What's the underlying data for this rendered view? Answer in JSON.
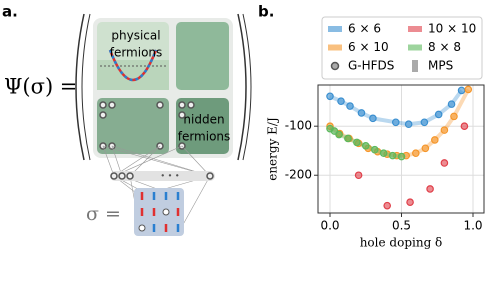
{
  "panel_a": {
    "label": "a.",
    "formula": "Ψ(σ) =",
    "sigma": "σ =",
    "physical": [
      "physical",
      "fermions"
    ],
    "hidden": [
      "hidden",
      "fermions"
    ],
    "dots": "• • •"
  },
  "chart_data": {
    "type": "scatter",
    "panel_label": "b.",
    "xlabel": "hole doping δ",
    "ylabel": "energy E/J",
    "xlim": [
      -0.084,
      1.077
    ],
    "ylim": [
      -277,
      -16
    ],
    "xticks": [
      {
        "value": 0,
        "label": "0.0"
      },
      0.5,
      {
        "value": 1,
        "label": "1.0"
      }
    ],
    "yticks": [
      -100,
      -200
    ],
    "grid": true,
    "series": [
      {
        "name": "6 × 6",
        "color": "#3a8fd0",
        "line": true,
        "x": [
          0,
          0.077,
          0.14,
          0.22,
          0.3,
          0.46,
          0.55,
          0.66,
          0.76,
          0.85,
          0.92
        ],
        "values": [
          -39,
          -49,
          -59,
          -73,
          -84,
          -92,
          -96,
          -92,
          -76,
          -55,
          -27
        ]
      },
      {
        "name": "10 × 10",
        "color": "#e0404a",
        "line": false,
        "x": [
          0.2,
          0.4,
          0.56,
          0.7,
          0.8,
          0.94
        ],
        "values": [
          -200,
          -262,
          -255,
          -228,
          -175,
          -100
        ]
      },
      {
        "name": "6 × 10",
        "color": "#f5962a",
        "line": true,
        "x": [
          0,
          0.067,
          0.133,
          0.2,
          0.267,
          0.333,
          0.4,
          0.467,
          0.533,
          0.6,
          0.667,
          0.733,
          0.8,
          0.867,
          0.967
        ],
        "values": [
          -100,
          -115,
          -125,
          -135,
          -145,
          -152,
          -157,
          -160,
          -160,
          -155,
          -145,
          -128,
          -108,
          -80,
          -25
        ]
      },
      {
        "name": "8 × 8",
        "color": "#5cb85c",
        "line": true,
        "x": [
          0,
          0.031,
          0.063,
          0.125,
          0.188,
          0.25,
          0.313,
          0.375,
          0.438,
          0.5
        ],
        "values": [
          -105,
          -110,
          -117,
          -125,
          -133,
          -140,
          -148,
          -155,
          -160,
          -162
        ]
      }
    ],
    "legend_extra": [
      "G-HFDS",
      "MPS"
    ]
  }
}
